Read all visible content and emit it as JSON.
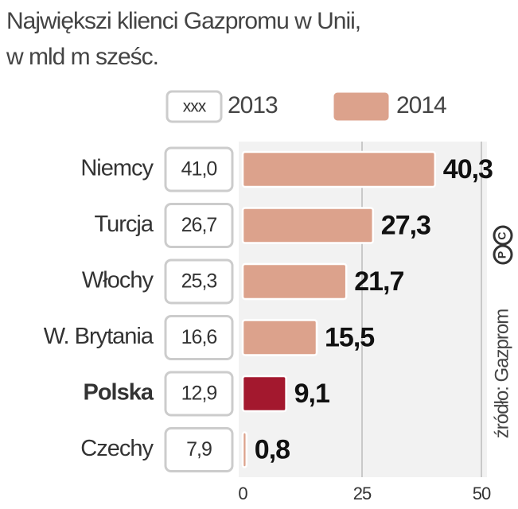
{
  "chart_data": {
    "type": "bar",
    "orientation": "horizontal",
    "title": "Największi klienci Gazpromu w Unii,",
    "subtitle": "w mld m sześc.",
    "categories": [
      "Niemcy",
      "Turcja",
      "Włochy",
      "W. Brytania",
      "Polska",
      "Czechy"
    ],
    "series": [
      {
        "name": "2013",
        "legend_sample": "xxx",
        "values": [
          41.0,
          26.7,
          25.3,
          16.6,
          12.9,
          7.9
        ],
        "value_labels": [
          "41,0",
          "26,7",
          "25,3",
          "16,6",
          "12,9",
          "7,9"
        ],
        "color": "#ffffff"
      },
      {
        "name": "2014",
        "values": [
          40.3,
          27.3,
          21.7,
          15.5,
          9.1,
          0.8
        ],
        "value_labels": [
          "40,3",
          "27,3",
          "21,7",
          "15,5",
          "9,1",
          "0,8"
        ],
        "color": "#dca28c",
        "highlight_index": 4,
        "highlight_color": "#a3182e"
      }
    ],
    "xlim": [
      0,
      50
    ],
    "xticks": [
      0,
      25,
      50
    ],
    "grid": true,
    "source": "źródło: Gazprom",
    "logo_letters": [
      "C",
      "P"
    ]
  }
}
